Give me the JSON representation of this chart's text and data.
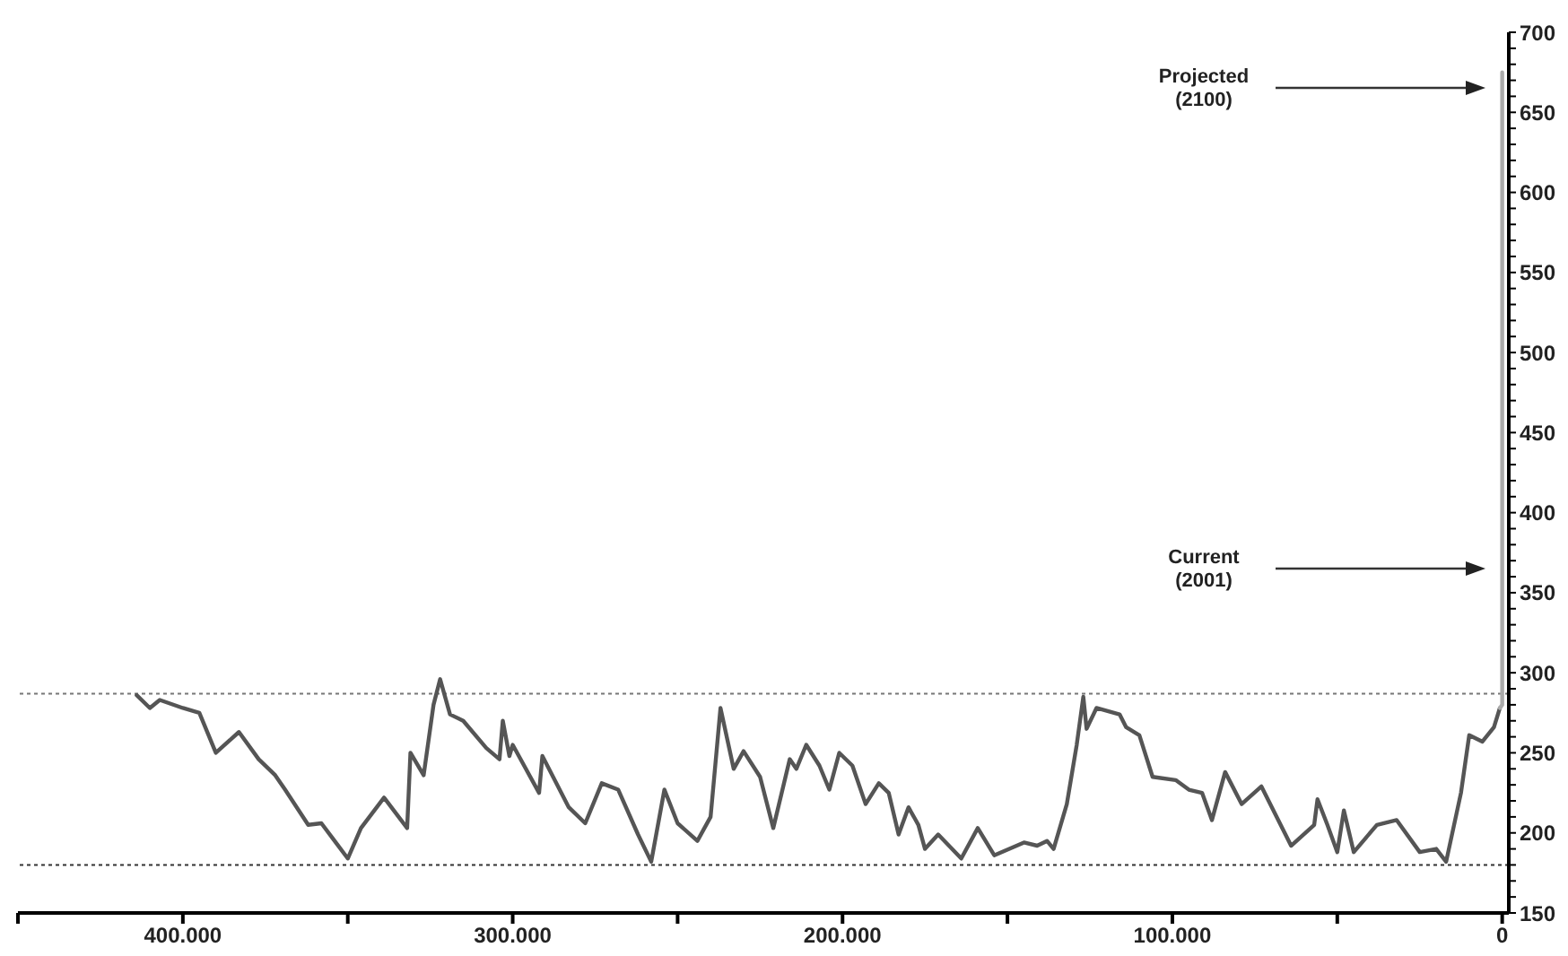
{
  "chart_data": {
    "type": "line",
    "series": [
      {
        "color": "#555555",
        "x": [
          414000,
          410000,
          407000,
          400000,
          395000,
          390000,
          383000,
          377000,
          372000,
          369000,
          362000,
          358000,
          354000,
          350000,
          346000,
          339000,
          332000,
          331000,
          327000,
          324000,
          322000,
          319000,
          315000,
          308000,
          304000,
          303000,
          301000,
          300000,
          292000,
          291000,
          283000,
          278000,
          273000,
          268000,
          262000,
          258000,
          254000,
          250000,
          244000,
          240000,
          237000,
          233000,
          230000,
          225000,
          221000,
          216000,
          214000,
          211000,
          207000,
          204000,
          201000,
          197000,
          193000,
          189000,
          186000,
          183000,
          180000,
          177000,
          175000,
          171000,
          164000,
          159000,
          154000,
          145000,
          141000,
          138000,
          136000,
          132000,
          129000,
          127000,
          126000,
          123000,
          116000,
          114000,
          110000,
          106000,
          99000,
          95000,
          91000,
          88000,
          84000,
          79000,
          73000,
          64000,
          57000,
          56000,
          53000,
          50000,
          48000,
          45000,
          38000,
          32000,
          25000,
          20000,
          17000,
          12500,
          10000,
          6000,
          2500,
          700
        ],
        "values": [
          286,
          278,
          283,
          278,
          275,
          250,
          263,
          246,
          236,
          227,
          205,
          206,
          195,
          184,
          203,
          222,
          203,
          250,
          236,
          280,
          296,
          274,
          270,
          253,
          246,
          270,
          248,
          255,
          225,
          248,
          216,
          206,
          231,
          227,
          199,
          182,
          227,
          206,
          195,
          210,
          278,
          240,
          251,
          235,
          203,
          246,
          240,
          255,
          242,
          227,
          250,
          242,
          218,
          231,
          225,
          199,
          216,
          205,
          190,
          199,
          184,
          203,
          186,
          194,
          192,
          195,
          190,
          218,
          255,
          285,
          265,
          278,
          274,
          266,
          261,
          235,
          233,
          227,
          225,
          208,
          238,
          218,
          229,
          192,
          205,
          221,
          205,
          188,
          214,
          188,
          205,
          208,
          188,
          190,
          182,
          225,
          261,
          257,
          266,
          278
        ]
      },
      {
        "color": "#aaaaaa",
        "x": [
          700,
          0,
          0
        ],
        "values": [
          278,
          280,
          675
        ]
      }
    ],
    "xlim": [
      450000,
      -2000
    ],
    "xticks": [
      {
        "value": 450000,
        "label": null
      },
      {
        "value": 400000,
        "label": "400.000"
      },
      {
        "value": 350000,
        "label": null
      },
      {
        "value": 300000,
        "label": "300.000"
      },
      {
        "value": 250000,
        "label": null
      },
      {
        "value": 200000,
        "label": "200.000"
      },
      {
        "value": 150000,
        "label": null
      },
      {
        "value": 100000,
        "label": "100.000"
      },
      {
        "value": 50000,
        "label": null
      },
      0
    ],
    "ylim": [
      150,
      700
    ],
    "yticks": [
      150,
      {
        "value": 160,
        "label": null
      },
      {
        "value": 170,
        "label": null
      },
      {
        "value": 180,
        "label": null
      },
      {
        "value": 190,
        "label": null
      },
      200,
      {
        "value": 210,
        "label": null
      },
      {
        "value": 220,
        "label": null
      },
      {
        "value": 230,
        "label": null
      },
      {
        "value": 240,
        "label": null
      },
      250,
      {
        "value": 260,
        "label": null
      },
      {
        "value": 270,
        "label": null
      },
      {
        "value": 280,
        "label": null
      },
      {
        "value": 290,
        "label": null
      },
      300,
      {
        "value": 310,
        "label": null
      },
      {
        "value": 320,
        "label": null
      },
      {
        "value": 330,
        "label": null
      },
      {
        "value": 340,
        "label": null
      },
      350,
      {
        "value": 360,
        "label": null
      },
      {
        "value": 370,
        "label": null
      },
      {
        "value": 380,
        "label": null
      },
      {
        "value": 390,
        "label": null
      },
      400,
      {
        "value": 410,
        "label": null
      },
      {
        "value": 420,
        "label": null
      },
      {
        "value": 430,
        "label": null
      },
      {
        "value": 440,
        "label": null
      },
      450,
      {
        "value": 460,
        "label": null
      },
      {
        "value": 470,
        "label": null
      },
      {
        "value": 480,
        "label": null
      },
      {
        "value": 490,
        "label": null
      },
      500,
      {
        "value": 510,
        "label": null
      },
      {
        "value": 520,
        "label": null
      },
      {
        "value": 530,
        "label": null
      },
      {
        "value": 540,
        "label": null
      },
      550,
      {
        "value": 560,
        "label": null
      },
      {
        "value": 570,
        "label": null
      },
      {
        "value": 580,
        "label": null
      },
      {
        "value": 590,
        "label": null
      },
      600,
      {
        "value": 610,
        "label": null
      },
      {
        "value": 620,
        "label": null
      },
      {
        "value": 630,
        "label": null
      },
      {
        "value": 640,
        "label": null
      },
      650,
      {
        "value": 660,
        "label": null
      },
      {
        "value": 670,
        "label": null
      },
      {
        "value": 680,
        "label": null
      },
      {
        "value": 690,
        "label": null
      },
      700
    ],
    "ref_lines": [
      {
        "axis": "y",
        "value": 287,
        "color": "#777777",
        "line_style": "dotted"
      },
      {
        "axis": "y",
        "value": 180,
        "color": "#333333",
        "line_style": "dotted"
      }
    ],
    "annotations": [
      "Projected (2100)",
      "Current (2001)"
    ],
    "grid": false,
    "legend": false,
    "marker": "none",
    "line_style": "solid"
  }
}
